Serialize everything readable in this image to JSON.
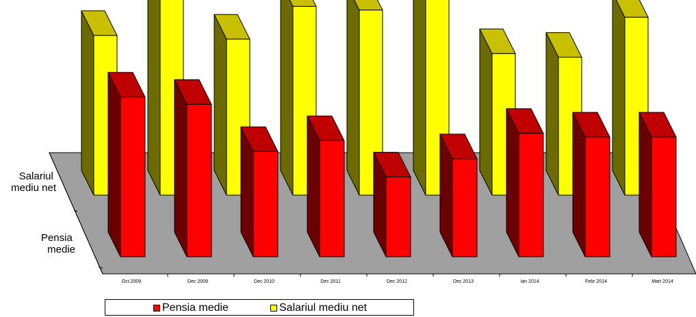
{
  "chart_data": {
    "type": "bar",
    "subtype": "3d-column-depth",
    "categories": [
      "Oct.2009",
      "Dec 2009",
      "Dec 2010",
      "Dec 2011",
      "Dec 2012",
      "Dec 2013",
      "Ian 2014",
      "Febr 2014",
      "Mart 2014"
    ],
    "depth_labels": [
      "Salariul mediu net",
      "Pensia medie"
    ],
    "series": [
      {
        "name": "Pensia medie",
        "color": "#ff0000",
        "values": [
          44,
          42,
          29,
          32,
          22,
          27,
          34,
          33,
          33
        ]
      },
      {
        "name": "Salariul mediu net",
        "color": "#ffff00",
        "values": [
          44,
          58,
          43,
          52,
          51,
          58,
          39,
          38,
          49
        ]
      }
    ],
    "legend": {
      "position": "bottom-left",
      "items": [
        "Pensia medie",
        "Salariul mediu net"
      ]
    },
    "grid": false,
    "floor_color": "#a0a0a0"
  }
}
